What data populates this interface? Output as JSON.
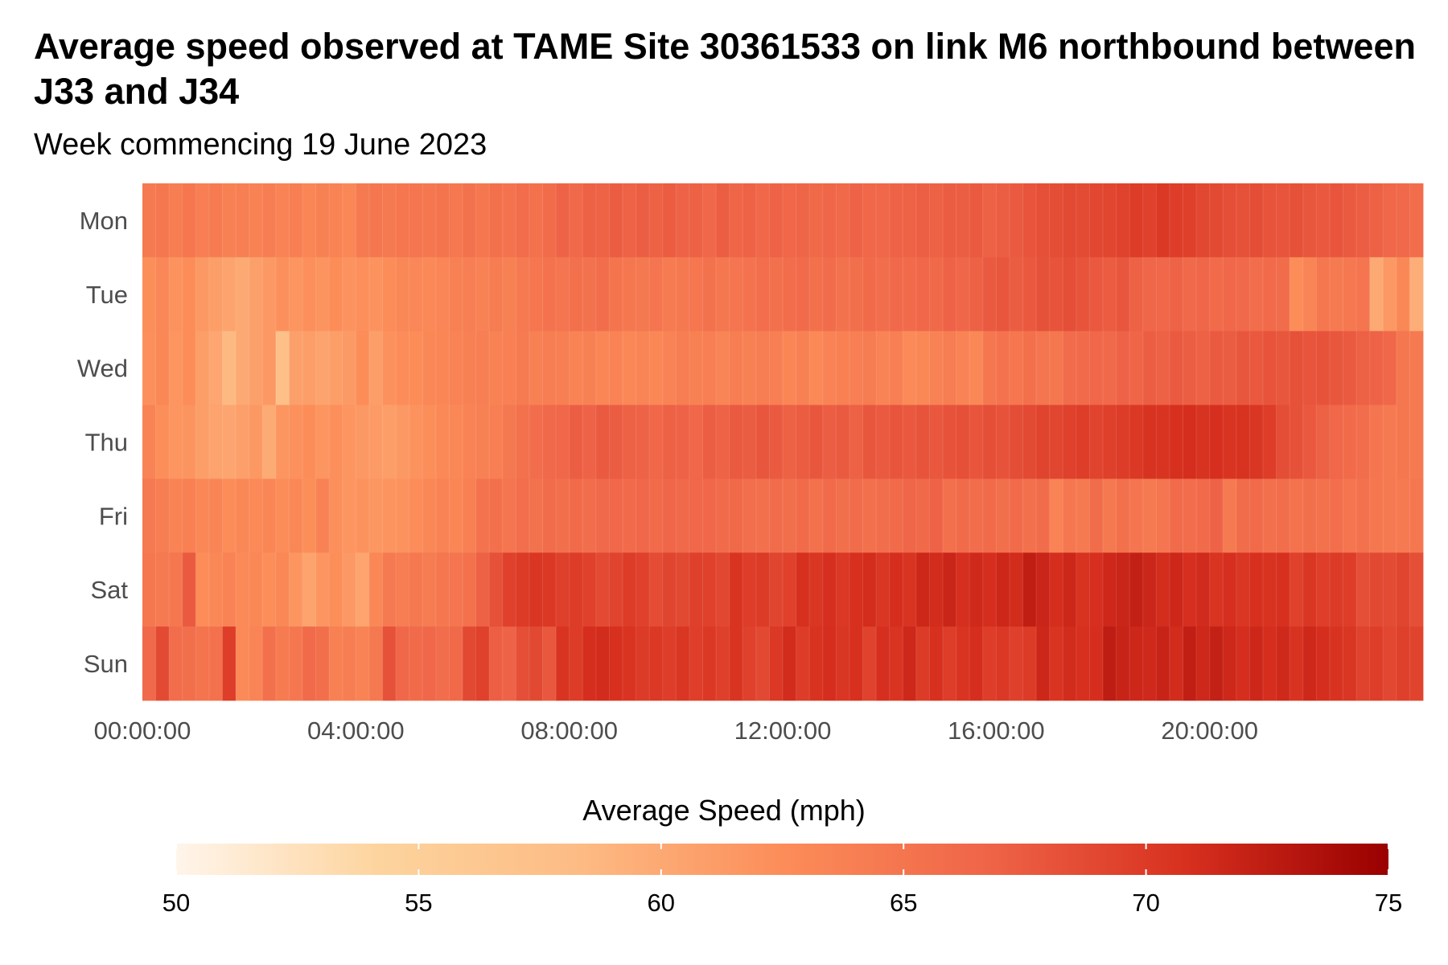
{
  "chart_data": {
    "type": "heatmap",
    "title": "Average speed observed at TAME Site 30361533 on link M6 northbound between J33 and J34",
    "subtitle": "Week commencing 19 June 2023",
    "y_categories": [
      "Mon",
      "Tue",
      "Wed",
      "Thu",
      "Fri",
      "Sat",
      "Sun"
    ],
    "x_interval_minutes": 15,
    "x_range": [
      "00:00:00",
      "23:45:00"
    ],
    "x_tick_labels": [
      "00:00:00",
      "04:00:00",
      "08:00:00",
      "12:00:00",
      "16:00:00",
      "20:00:00"
    ],
    "legend": {
      "title": "Average Speed (mph)",
      "min": 50,
      "max": 75,
      "ticks": [
        50,
        55,
        60,
        65,
        70,
        75
      ],
      "colors": [
        "#fff5eb",
        "#fdd49e",
        "#fdbb84",
        "#fc8d59",
        "#ef6548",
        "#d7301f",
        "#990000"
      ],
      "position": "bottom"
    },
    "values": {
      "Mon": [
        64.5,
        64.8,
        64.2,
        64.9,
        64.0,
        64.4,
        63.8,
        64.0,
        63.6,
        64.1,
        63.5,
        64.0,
        63.2,
        63.8,
        63.5,
        63.0,
        64.5,
        64.8,
        64.5,
        64.9,
        65.0,
        64.8,
        65.1,
        64.7,
        65.3,
        64.8,
        65.5,
        65.2,
        65.8,
        65.4,
        65.9,
        66.8,
        66.2,
        67.0,
        66.9,
        67.3,
        66.9,
        67.2,
        67.0,
        67.4,
        66.8,
        67.0,
        66.5,
        67.2,
        66.7,
        66.9,
        66.4,
        66.8,
        66.5,
        66.7,
        66.3,
        66.6,
        66.3,
        66.8,
        66.5,
        66.5,
        66.8,
        66.9,
        67.1,
        67.0,
        67.3,
        67.2,
        67.5,
        67.0,
        67.2,
        67.5,
        67.9,
        68.3,
        68.5,
        68.8,
        68.7,
        69.0,
        69.1,
        69.4,
        69.9,
        69.5,
        70.1,
        69.8,
        69.6,
        69.0,
        68.8,
        68.4,
        68.2,
        68.5,
        68.0,
        67.9,
        68.2,
        67.8,
        67.6,
        67.9,
        67.5,
        67.2,
        67.0,
        66.5,
        66.2,
        65.8
      ],
      "Tue": [
        62.4,
        63.1,
        62.0,
        62.5,
        61.5,
        61.0,
        60.5,
        60.0,
        60.8,
        61.5,
        62.2,
        61.8,
        62.3,
        61.9,
        62.5,
        62.0,
        62.3,
        62.0,
        62.5,
        63.0,
        63.1,
        62.9,
        63.3,
        63.8,
        64.0,
        63.6,
        64.3,
        63.8,
        64.5,
        64.9,
        65.2,
        65.0,
        65.5,
        65.3,
        65.8,
        65.1,
        64.8,
        64.6,
        65.0,
        64.4,
        64.6,
        64.9,
        65.3,
        64.8,
        65.0,
        65.2,
        65.7,
        65.5,
        65.8,
        66.0,
        65.5,
        65.9,
        65.3,
        65.6,
        66.0,
        65.8,
        66.2,
        66.0,
        66.5,
        66.3,
        66.8,
        66.6,
        67.0,
        67.5,
        67.8,
        67.3,
        67.6,
        68.2,
        68.0,
        68.4,
        68.0,
        67.6,
        67.4,
        67.8,
        67.0,
        66.6,
        66.5,
        66.9,
        66.2,
        66.6,
        66.0,
        66.4,
        66.2,
        65.8,
        66.1,
        65.9,
        62.5,
        63.4,
        64.8,
        64.5,
        64.7,
        65.0,
        60.0,
        61.5,
        63.0,
        59.5
      ],
      "Wed": [
        62.2,
        63.0,
        61.8,
        62.5,
        61.0,
        60.2,
        58.5,
        60.0,
        60.8,
        61.5,
        57.5,
        60.8,
        61.0,
        60.5,
        61.0,
        61.3,
        62.5,
        61.0,
        62.1,
        62.6,
        62.5,
        63.0,
        63.2,
        63.5,
        63.8,
        64.0,
        63.6,
        63.9,
        64.4,
        63.8,
        64.2,
        64.0,
        63.5,
        63.8,
        63.2,
        63.5,
        63.0,
        63.4,
        63.0,
        63.5,
        64.2,
        63.8,
        64.0,
        63.4,
        64.1,
        63.8,
        64.2,
        64.0,
        63.2,
        63.7,
        62.9,
        63.5,
        63.9,
        64.0,
        64.3,
        63.5,
        64.0,
        62.8,
        63.0,
        63.6,
        64.2,
        63.5,
        63.0,
        64.8,
        65.2,
        64.9,
        65.5,
        65.0,
        64.8,
        65.9,
        66.0,
        66.5,
        66.2,
        66.8,
        66.7,
        67.2,
        67.0,
        67.5,
        67.2,
        67.0,
        67.5,
        67.3,
        67.8,
        67.6,
        68.0,
        67.8,
        68.2,
        67.9,
        68.1,
        67.8,
        67.5,
        67.0,
        66.8,
        66.5,
        64.8,
        64.5
      ],
      "Thu": [
        63.5,
        62.4,
        61.8,
        61.9,
        61.0,
        60.5,
        60.3,
        60.9,
        61.5,
        59.8,
        61.8,
        62.1,
        62.5,
        61.8,
        62.3,
        61.8,
        61.5,
        61.2,
        61.0,
        61.5,
        62.0,
        62.4,
        62.9,
        63.0,
        63.5,
        63.8,
        64.0,
        64.6,
        65.4,
        65.8,
        66.2,
        66.5,
        67.2,
        66.8,
        67.5,
        67.3,
        67.0,
        66.8,
        66.5,
        67.0,
        66.8,
        66.5,
        67.2,
        66.9,
        67.5,
        67.3,
        67.8,
        67.5,
        67.0,
        67.4,
        67.8,
        67.2,
        67.5,
        67.0,
        67.8,
        67.5,
        67.9,
        67.6,
        68.0,
        67.7,
        68.1,
        68.3,
        67.9,
        68.4,
        68.1,
        68.5,
        68.8,
        69.3,
        69.1,
        69.5,
        69.8,
        69.3,
        69.6,
        69.9,
        70.2,
        70.6,
        70.5,
        70.8,
        71.0,
        70.6,
        70.9,
        70.5,
        70.7,
        70.4,
        69.8,
        68.5,
        68.2,
        67.6,
        67.0,
        66.5,
        66.0,
        65.8,
        65.0,
        64.5,
        64.8,
        64.5
      ],
      "Fri": [
        64.5,
        64.2,
        63.5,
        63.9,
        63.0,
        63.4,
        62.5,
        63.0,
        62.8,
        63.2,
        62.5,
        63.0,
        62.4,
        63.6,
        62.2,
        61.8,
        62.0,
        61.6,
        61.9,
        62.0,
        62.6,
        63.0,
        63.5,
        63.2,
        63.9,
        65.2,
        65.5,
        65.0,
        65.7,
        65.3,
        65.9,
        65.6,
        66.0,
        65.8,
        66.2,
        66.5,
        66.0,
        66.5,
        66.1,
        66.6,
        66.2,
        66.5,
        66.4,
        66.0,
        66.3,
        65.7,
        65.5,
        65.9,
        65.6,
        66.0,
        65.4,
        66.1,
        65.6,
        65.9,
        65.5,
        65.8,
        66.0,
        66.6,
        66.3,
        66.8,
        65.5,
        66.0,
        65.8,
        66.1,
        65.6,
        66.0,
        65.5,
        65.9,
        63.5,
        64.8,
        64.5,
        65.9,
        64.6,
        65.5,
        65.0,
        64.5,
        65.0,
        66.0,
        65.8,
        66.0,
        66.8,
        64.5,
        65.9,
        66.1,
        65.5,
        65.8,
        65.2,
        65.6,
        65.4,
        65.7,
        65.0,
        65.4,
        64.8,
        64.5,
        64.5,
        64.8
      ],
      "Sat": [
        64.8,
        64.5,
        64.8,
        67.5,
        62.5,
        63.0,
        63.5,
        62.8,
        63.0,
        62.4,
        63.0,
        61.8,
        60.5,
        61.8,
        62.4,
        61.5,
        60.4,
        63.0,
        64.5,
        64.2,
        64.7,
        64.3,
        64.8,
        65.0,
        65.4,
        67.0,
        68.2,
        69.5,
        70.0,
        70.4,
        70.2,
        69.6,
        69.9,
        69.5,
        68.8,
        69.3,
        69.9,
        69.5,
        68.6,
        69.2,
        68.9,
        69.6,
        69.5,
        69.0,
        70.5,
        69.8,
        70.0,
        69.2,
        69.5,
        70.8,
        70.4,
        70.9,
        70.2,
        70.8,
        71.1,
        70.4,
        71.0,
        70.5,
        71.6,
        71.2,
        71.8,
        70.9,
        71.4,
        71.0,
        71.6,
        71.2,
        72.4,
        71.8,
        71.0,
        71.6,
        70.7,
        70.9,
        71.5,
        71.8,
        72.2,
        71.7,
        71.1,
        71.6,
        70.9,
        71.3,
        70.5,
        70.9,
        70.4,
        70.8,
        70.6,
        70.8,
        69.5,
        70.4,
        69.7,
        70.0,
        69.8,
        68.4,
        68.9,
        68.7,
        69.2,
        68.4
      ],
      "Sun": [
        66.2,
        68.8,
        65.8,
        65.6,
        65.1,
        65.4,
        69.8,
        62.8,
        63.4,
        65.5,
        64.4,
        64.8,
        66.1,
        65.6,
        63.8,
        64.1,
        63.5,
        64.6,
        68.2,
        66.5,
        66.0,
        66.5,
        65.8,
        66.3,
        68.9,
        69.5,
        67.1,
        66.8,
        68.4,
        68.9,
        67.7,
        70.5,
        69.9,
        71.0,
        71.2,
        70.8,
        70.5,
        70.0,
        70.2,
        69.8,
        70.4,
        69.7,
        70.1,
        69.6,
        70.5,
        69.5,
        68.9,
        70.2,
        71.2,
        69.9,
        70.6,
        71.0,
        70.4,
        70.8,
        69.4,
        70.9,
        70.5,
        71.5,
        70.0,
        70.8,
        69.8,
        70.5,
        71.0,
        69.8,
        70.2,
        69.6,
        70.0,
        71.6,
        70.5,
        71.2,
        70.8,
        71.0,
        72.5,
        71.9,
        71.6,
        71.4,
        71.9,
        71.2,
        72.3,
        71.5,
        72.1,
        71.5,
        71.0,
        71.6,
        71.0,
        71.4,
        70.6,
        71.5,
        71.0,
        70.6,
        70.4,
        69.4,
        69.8,
        69.0,
        69.6,
        69.3
      ]
    }
  }
}
